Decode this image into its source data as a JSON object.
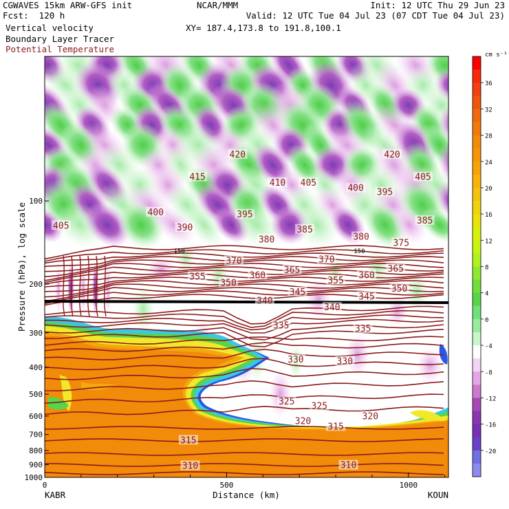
{
  "header": {
    "model": "CGWAVES 15km ARW-GFS init",
    "forecast": "Fcst:  120 h",
    "center": "NCAR/MMM",
    "xy": "XY= 187.4,173.8 to 191.8,100.1",
    "init": "Init: 12 UTC Thu 29 Jun 23",
    "valid": "Valid: 12 UTC Tue 04 Jul 23 (07 CDT Tue 04 Jul 23)",
    "field1": "Vertical velocity",
    "field2": "Boundary Layer Tracer",
    "field3": "Potential Temperature"
  },
  "colors": {
    "theta_contour": "#8b1a1a",
    "tracer_line": "#000000"
  },
  "chart_data": {
    "type": "heatmap",
    "title": "Vertical velocity",
    "xlabel": "Distance (km)",
    "ylabel": "Pressure (hPa), log scale",
    "x_ticks": [
      0,
      500,
      1000
    ],
    "x_tick_labels": [
      "0",
      "500",
      "1000"
    ],
    "xlim": [
      0,
      1110
    ],
    "x_endpoint_labels": [
      "KABR",
      "KOUN"
    ],
    "y_ticks": [
      100,
      200,
      300,
      400,
      500,
      600,
      700,
      800,
      900,
      1000
    ],
    "y_tick_labels": [
      "100",
      "200",
      "300",
      "400",
      "500",
      "600",
      "700",
      "800",
      "900",
      "1000"
    ],
    "ylim": [
      1000,
      30
    ],
    "y_scale": "log",
    "colorbar": {
      "unit": "cm s⁻¹",
      "tick_labels": [
        "36",
        "32",
        "28",
        "24",
        "20",
        "16",
        "12",
        "8",
        "4",
        "0",
        "-4",
        "-8",
        "-12",
        "-16",
        "-20"
      ],
      "levels": [
        40,
        38,
        36,
        34,
        32,
        30,
        28,
        26,
        24,
        22,
        20,
        18,
        16,
        14,
        12,
        10,
        8,
        6,
        4,
        2,
        0,
        -2,
        -4,
        -6,
        -8,
        -10,
        -12,
        -14,
        -16,
        -18,
        -20,
        -22
      ],
      "colors": [
        "#ff0000",
        "#f72a0e",
        "#f2400e",
        "#f0550c",
        "#ef6a0c",
        "#f07a0a",
        "#f28a0a",
        "#f59608",
        "#f8a20a",
        "#f8b20c",
        "#f5c20e",
        "#f0d20e",
        "#e8e20e",
        "#d8f00e",
        "#c6f514",
        "#b0f220",
        "#90e830",
        "#72dc3a",
        "#58d44a",
        "#72e07a",
        "#98ec9e",
        "#c8f7c8",
        "#ffffff",
        "#f4d4f4",
        "#e2a8e6",
        "#cc7acc",
        "#a848b8",
        "#8a36b0",
        "#7830b0",
        "#6a40c8",
        "#7070e0",
        "#8c8cf0"
      ]
    },
    "theta_contour_labels": [
      {
        "text": "420",
        "x": 530,
        "p": 68
      },
      {
        "text": "420",
        "x": 955,
        "p": 68
      },
      {
        "text": "415",
        "x": 420,
        "p": 82
      },
      {
        "text": "410",
        "x": 640,
        "p": 86
      },
      {
        "text": "405",
        "x": 725,
        "p": 86
      },
      {
        "text": "405",
        "x": 1040,
        "p": 82
      },
      {
        "text": "405",
        "x": 45,
        "p": 123
      },
      {
        "text": "400",
        "x": 305,
        "p": 110
      },
      {
        "text": "400",
        "x": 855,
        "p": 90
      },
      {
        "text": "395",
        "x": 550,
        "p": 112
      },
      {
        "text": "395",
        "x": 935,
        "p": 93
      },
      {
        "text": "390",
        "x": 385,
        "p": 125
      },
      {
        "text": "385",
        "x": 715,
        "p": 127
      },
      {
        "text": "385",
        "x": 1045,
        "p": 118
      },
      {
        "text": "380",
        "x": 610,
        "p": 138
      },
      {
        "text": "380",
        "x": 870,
        "p": 135
      },
      {
        "text": "375",
        "x": 980,
        "p": 142
      },
      {
        "text": "370",
        "x": 520,
        "p": 165
      },
      {
        "text": "370",
        "x": 775,
        "p": 163
      },
      {
        "text": "365",
        "x": 680,
        "p": 178
      },
      {
        "text": "365",
        "x": 965,
        "p": 176
      },
      {
        "text": "360",
        "x": 585,
        "p": 186
      },
      {
        "text": "360",
        "x": 885,
        "p": 186
      },
      {
        "text": "355",
        "x": 420,
        "p": 188
      },
      {
        "text": "355",
        "x": 800,
        "p": 194
      },
      {
        "text": "350",
        "x": 505,
        "p": 198
      },
      {
        "text": "350",
        "x": 975,
        "p": 208
      },
      {
        "text": "345",
        "x": 695,
        "p": 214
      },
      {
        "text": "345",
        "x": 885,
        "p": 222
      },
      {
        "text": "340",
        "x": 605,
        "p": 230
      },
      {
        "text": "340",
        "x": 790,
        "p": 243
      },
      {
        "text": "335",
        "x": 650,
        "p": 283
      },
      {
        "text": "335",
        "x": 875,
        "p": 290
      },
      {
        "text": "330",
        "x": 690,
        "p": 375
      },
      {
        "text": "330",
        "x": 825,
        "p": 381
      },
      {
        "text": "325",
        "x": 665,
        "p": 532
      },
      {
        "text": "325",
        "x": 755,
        "p": 552
      },
      {
        "text": "320",
        "x": 710,
        "p": 627
      },
      {
        "text": "320",
        "x": 895,
        "p": 603
      },
      {
        "text": "315",
        "x": 395,
        "p": 735
      },
      {
        "text": "315",
        "x": 800,
        "p": 656
      },
      {
        "text": "310",
        "x": 400,
        "p": 910
      },
      {
        "text": "310",
        "x": 835,
        "p": 905
      }
    ],
    "tracer_contour_labels": [
      {
        "text": "150",
        "x": 370,
        "p": 152
      },
      {
        "text": "150",
        "x": 865,
        "p": 152
      }
    ]
  }
}
